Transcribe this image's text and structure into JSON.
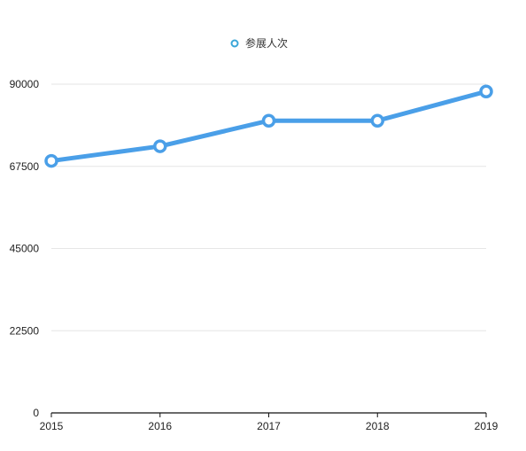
{
  "chart_data": {
    "type": "line",
    "categories": [
      "2015",
      "2016",
      "2017",
      "2018",
      "2019"
    ],
    "series": [
      {
        "name": "参展人次",
        "values": [
          69000,
          73000,
          80000,
          80000,
          88000
        ],
        "color": "#4a9fe8"
      }
    ],
    "yticks": [
      "0",
      "22500",
      "45000",
      "67500",
      "90000"
    ],
    "ylim": [
      0,
      90000
    ],
    "grid": true,
    "legend": "top-center"
  }
}
